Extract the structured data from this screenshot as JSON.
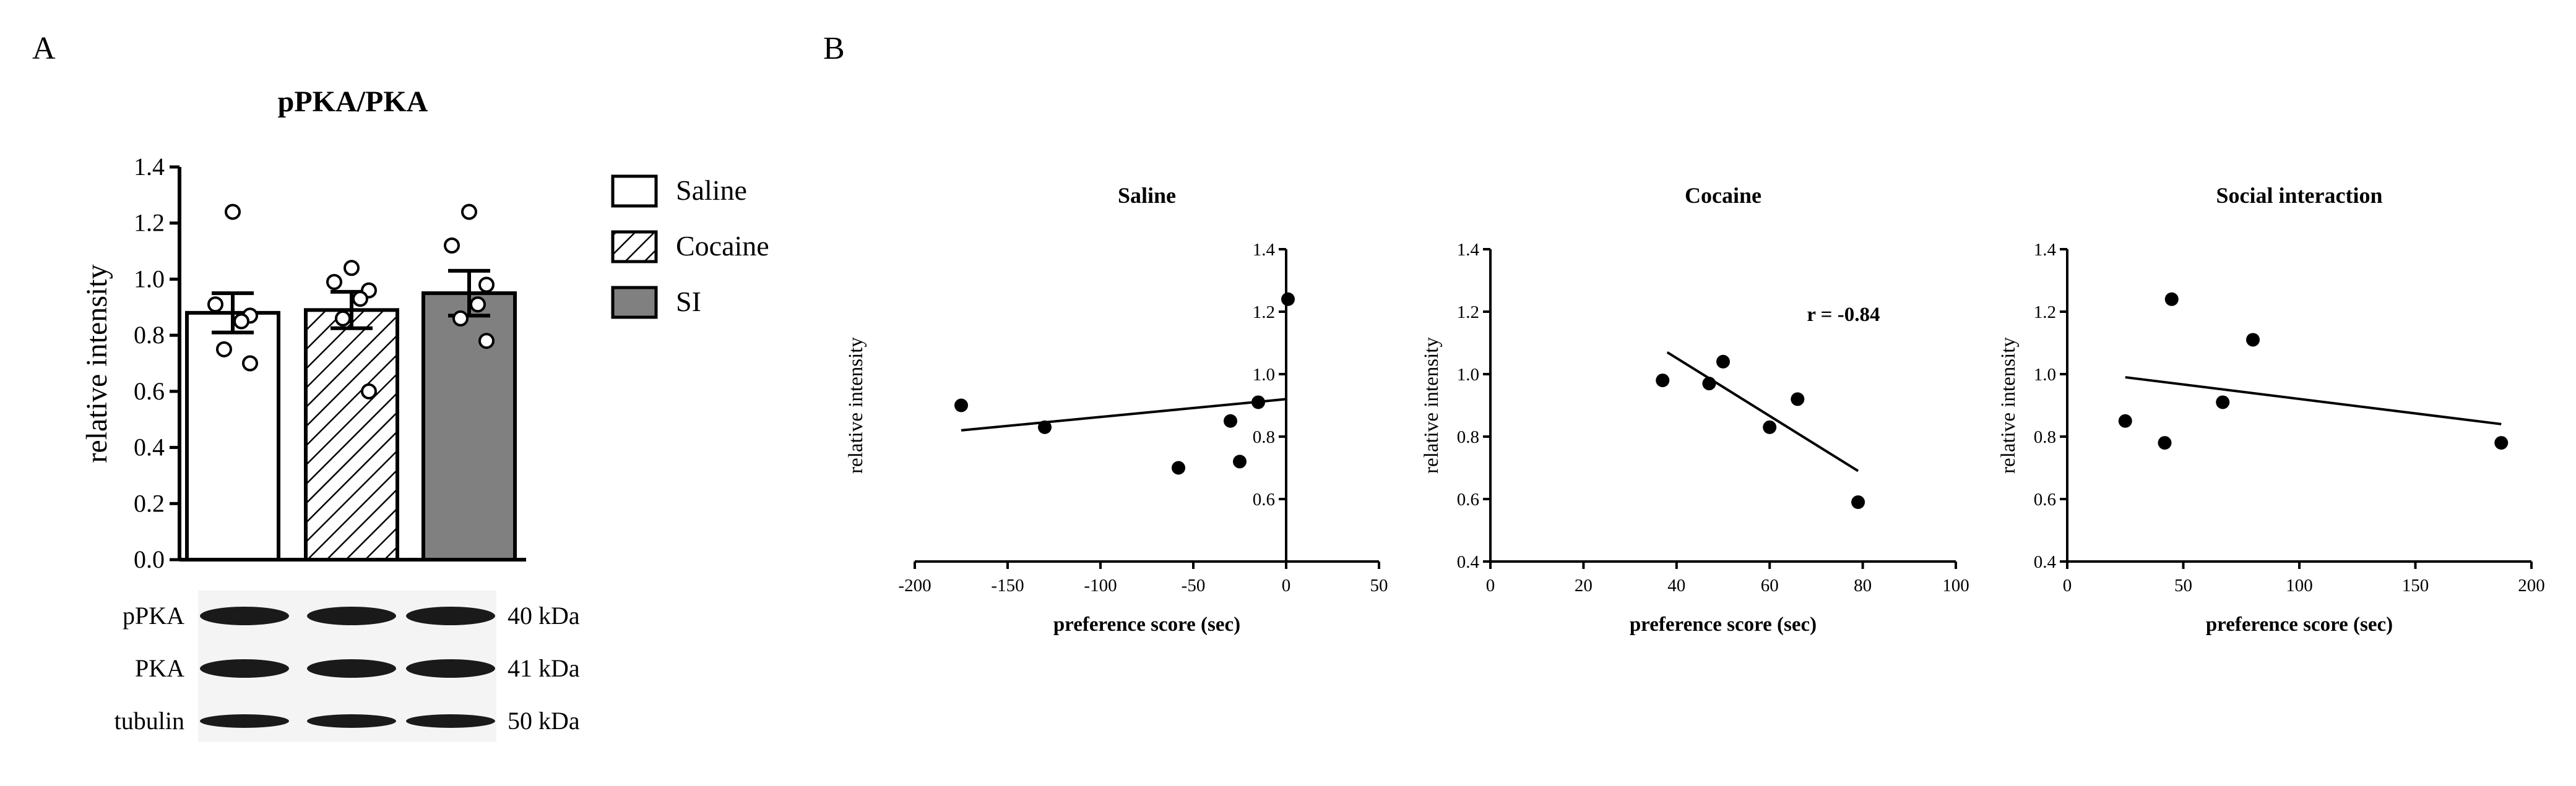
{
  "panel_labels": {
    "a": "A",
    "b": "B"
  },
  "colors": {
    "axis": "#000000",
    "bar_fill_saline": "#ffffff",
    "bar_fill_cocaine": "#ffffff",
    "bar_fill_si": "#808080",
    "points": "#000000"
  },
  "legend": [
    {
      "label": "Saline",
      "pattern": "open"
    },
    {
      "label": "Cocaine",
      "pattern": "hatched"
    },
    {
      "label": "SI",
      "pattern": "gray"
    }
  ],
  "western_blot": {
    "rows": [
      {
        "protein": "pPKA",
        "size": "40 kDa"
      },
      {
        "protein": "PKA",
        "size": "41 kDa"
      },
      {
        "protein": "tubulin",
        "size": "50 kDa"
      }
    ]
  },
  "chart_data": [
    {
      "type": "bar",
      "title": "pPKA/PKA",
      "ylabel": "relative intensity",
      "xlabel": "",
      "ylim": [
        0,
        1.4
      ],
      "yticks": [
        "0.0",
        "0.2",
        "0.4",
        "0.6",
        "0.8",
        "1.0",
        "1.2",
        "1.4"
      ],
      "grid": false,
      "legend_position": "right",
      "categories": [
        "Saline",
        "Cocaine",
        "SI"
      ],
      "values": [
        0.88,
        0.89,
        0.95
      ],
      "errors": [
        0.07,
        0.065,
        0.08
      ],
      "points": [
        [
          1.24,
          0.91,
          0.87,
          0.85,
          0.75,
          0.7
        ],
        [
          1.04,
          0.99,
          0.96,
          0.93,
          0.86,
          0.6
        ],
        [
          1.24,
          1.12,
          0.98,
          0.91,
          0.86,
          0.78
        ]
      ]
    },
    {
      "type": "scatter",
      "title": "Saline",
      "xlabel": "preference score (sec)",
      "ylabel": "relative intensity",
      "xlim": [
        -200,
        50
      ],
      "ylim": [
        0.4,
        1.4
      ],
      "xticks": [
        "-200",
        "-150",
        "-100",
        "-50",
        "0",
        "50"
      ],
      "yticks": [
        "0.6",
        "0.8",
        "1.0",
        "1.2",
        "1.4"
      ],
      "y_axis_at_x": 0,
      "points": [
        [
          -175,
          0.9
        ],
        [
          -130,
          0.83
        ],
        [
          -58,
          0.7
        ],
        [
          -30,
          0.85
        ],
        [
          -25,
          0.72
        ],
        [
          -15,
          0.91
        ],
        [
          1,
          1.24
        ]
      ],
      "fit": [
        [
          -175,
          0.82
        ],
        [
          0,
          0.92
        ]
      ],
      "annotation": ""
    },
    {
      "type": "scatter",
      "title": "Cocaine",
      "xlabel": "preference score (sec)",
      "ylabel": "relative intensity",
      "xlim": [
        0,
        100
      ],
      "ylim": [
        0.4,
        1.4
      ],
      "xticks": [
        "0",
        "20",
        "40",
        "60",
        "80",
        "100"
      ],
      "yticks": [
        "0.4",
        "0.6",
        "0.8",
        "1.0",
        "1.2",
        "1.4"
      ],
      "points": [
        [
          37,
          0.98
        ],
        [
          47,
          0.97
        ],
        [
          50,
          1.04
        ],
        [
          60,
          0.83
        ],
        [
          66,
          0.92
        ],
        [
          79,
          0.59
        ]
      ],
      "fit": [
        [
          38,
          1.07
        ],
        [
          79,
          0.69
        ]
      ],
      "annotation": "r = -0.84"
    },
    {
      "type": "scatter",
      "title": "Social interaction",
      "xlabel": "preference score (sec)",
      "ylabel": "relative intensity",
      "xlim": [
        0,
        200
      ],
      "ylim": [
        0.4,
        1.4
      ],
      "xticks": [
        "0",
        "50",
        "100",
        "150",
        "200"
      ],
      "yticks": [
        "0.4",
        "0.6",
        "0.8",
        "1.0",
        "1.2",
        "1.4"
      ],
      "points": [
        [
          25,
          0.85
        ],
        [
          42,
          0.78
        ],
        [
          45,
          1.24
        ],
        [
          67,
          0.91
        ],
        [
          80,
          1.11
        ],
        [
          187,
          0.78
        ]
      ],
      "fit": [
        [
          25,
          0.99
        ],
        [
          187,
          0.84
        ]
      ],
      "annotation": ""
    }
  ]
}
